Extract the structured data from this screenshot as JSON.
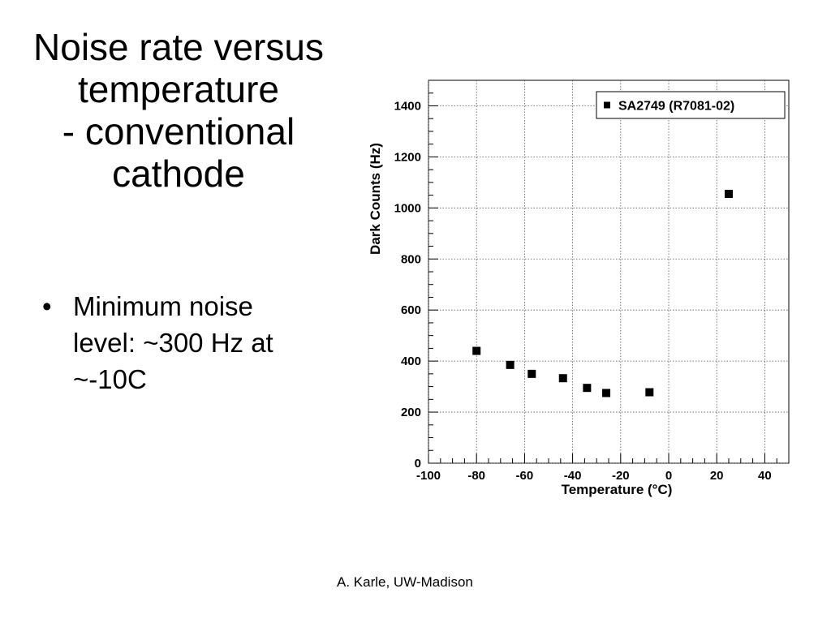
{
  "slide": {
    "title_lines": [
      "Noise rate versus",
      "temperature",
      "- conventional",
      "cathode"
    ],
    "bullets": [
      {
        "lines": [
          "Minimum noise",
          "level: ~300 Hz at",
          "~-10C"
        ]
      }
    ],
    "footer": "A. Karle, UW-Madison"
  },
  "chart_data": {
    "type": "scatter",
    "xlabel": "Temperature (°C)",
    "ylabel": "Dark Counts (Hz)",
    "xlim": [
      -100,
      50
    ],
    "ylim": [
      0,
      1500
    ],
    "xticks": [
      -100,
      -80,
      -60,
      -40,
      -20,
      0,
      20,
      40
    ],
    "yticks": [
      0,
      200,
      400,
      600,
      800,
      1000,
      1200,
      1400
    ],
    "grid": true,
    "legend_position": "top-right",
    "series": [
      {
        "name": "SA2749 (R7081-02)",
        "marker": "square",
        "color": "#000000",
        "points": [
          [
            -80,
            440
          ],
          [
            -66,
            385
          ],
          [
            -57,
            350
          ],
          [
            -44,
            333
          ],
          [
            -34,
            295
          ],
          [
            -26,
            275
          ],
          [
            -8,
            278
          ],
          [
            25,
            1055
          ]
        ]
      }
    ]
  }
}
